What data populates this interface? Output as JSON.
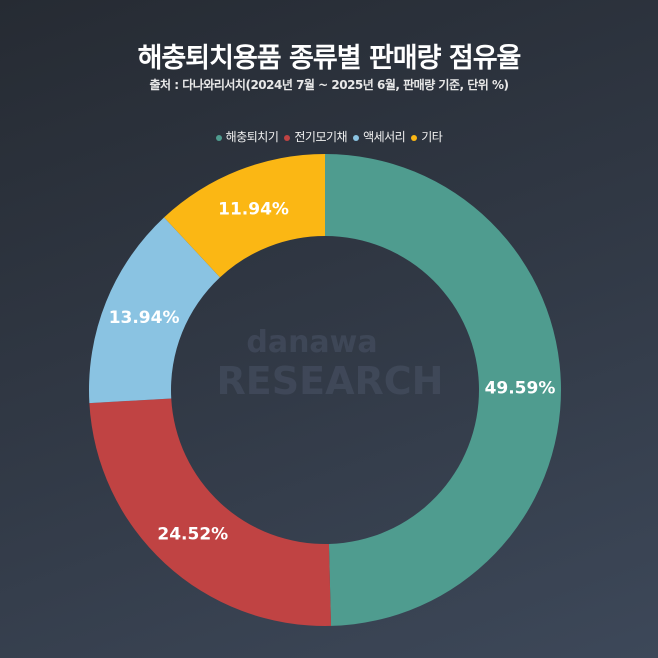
{
  "chart_data": {
    "type": "pie",
    "title": "해충퇴치용품 종류별 판매량 점유율",
    "subtitle": "출처 : 다나와리서치(2024년 7월 ~ 2025년 6월, 판매량 기준, 단위 %)",
    "legend_position": "top",
    "donut": true,
    "categories": [
      "해충퇴치기",
      "전기모기채",
      "액세서리",
      "기타"
    ],
    "values": [
      49.59,
      24.52,
      13.94,
      11.94
    ],
    "data_labels": [
      "49.59%",
      "24.52%",
      "13.94%",
      "11.94%"
    ],
    "colors": [
      "#4f9c8f",
      "#c04343",
      "#8ac3e2",
      "#fbb714"
    ]
  },
  "watermark": {
    "line1": "danawa",
    "line2": "RESEARCH"
  }
}
